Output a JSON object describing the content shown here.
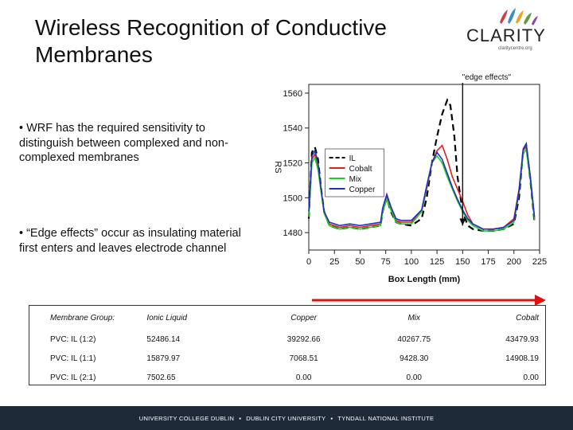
{
  "slide": {
    "title_line1": "Wireless Recognition of Conductive",
    "title_line2": "Membranes",
    "bullet1": "• WRF has the required sensitivity to distinguish between complexed and non-complexed membranes",
    "bullet2": "• “Edge effects” occur as insulating material first enters and leaves electrode channel"
  },
  "logo": {
    "word": "CLARITY",
    "sub": "claritycentre.org"
  },
  "chart_data": {
    "type": "line",
    "title": "",
    "xlabel": "Box Length (mm)",
    "ylabel": "RS",
    "xlim": [
      0,
      225
    ],
    "ylim": [
      1470,
      1565
    ],
    "xticks": [
      0,
      25,
      50,
      75,
      100,
      125,
      150,
      175,
      200,
      225
    ],
    "yticks": [
      1480,
      1500,
      1520,
      1540,
      1560
    ],
    "annotation": "\"edge effects\"",
    "legend_position": "top-left",
    "series": [
      {
        "name": "IL",
        "color": "#000000",
        "dash": "8,5",
        "x": [
          0,
          3,
          6,
          9,
          12,
          15,
          20,
          30,
          40,
          50,
          60,
          70,
          72,
          76,
          80,
          85,
          90,
          100,
          110,
          115,
          120,
          125,
          130,
          135,
          138,
          142,
          145,
          150,
          155,
          160,
          170,
          180,
          190,
          200,
          205,
          209,
          212,
          216,
          220
        ],
        "y": [
          1488,
          1526,
          1529,
          1522,
          1505,
          1492,
          1484,
          1482,
          1483,
          1482,
          1483,
          1484,
          1492,
          1500,
          1492,
          1486,
          1485,
          1484,
          1488,
          1500,
          1520,
          1535,
          1548,
          1556,
          1553,
          1535,
          1512,
          1492,
          1484,
          1482,
          1481,
          1481,
          1482,
          1485,
          1500,
          1527,
          1530,
          1510,
          1486
        ]
      },
      {
        "name": "Cobalt",
        "color": "#e02020",
        "x": [
          0,
          3,
          6,
          9,
          12,
          15,
          20,
          30,
          40,
          50,
          60,
          70,
          72,
          76,
          80,
          85,
          90,
          100,
          110,
          115,
          120,
          125,
          130,
          135,
          140,
          145,
          150,
          155,
          160,
          170,
          180,
          190,
          200,
          205,
          209,
          212,
          216,
          220
        ],
        "y": [
          1490,
          1522,
          1525,
          1518,
          1504,
          1492,
          1485,
          1483,
          1484,
          1483,
          1484,
          1485,
          1493,
          1501,
          1494,
          1487,
          1486,
          1486,
          1492,
          1505,
          1520,
          1527,
          1530,
          1522,
          1512,
          1505,
          1498,
          1490,
          1485,
          1482,
          1482,
          1483,
          1488,
          1505,
          1527,
          1530,
          1512,
          1488
        ]
      },
      {
        "name": "Mix",
        "color": "#22cc22",
        "x": [
          0,
          3,
          6,
          9,
          12,
          15,
          20,
          30,
          40,
          50,
          60,
          70,
          72,
          76,
          80,
          85,
          90,
          100,
          110,
          115,
          120,
          125,
          130,
          135,
          140,
          145,
          150,
          155,
          160,
          170,
          180,
          190,
          200,
          205,
          209,
          212,
          216,
          220
        ],
        "y": [
          1489,
          1520,
          1523,
          1516,
          1503,
          1491,
          1484,
          1482,
          1483,
          1482,
          1483,
          1484,
          1492,
          1499,
          1493,
          1486,
          1485,
          1485,
          1492,
          1506,
          1520,
          1524,
          1520,
          1512,
          1505,
          1498,
          1492,
          1487,
          1484,
          1481,
          1481,
          1482,
          1486,
          1503,
          1525,
          1528,
          1510,
          1487
        ]
      },
      {
        "name": "Copper",
        "color": "#2030c0",
        "x": [
          0,
          3,
          6,
          9,
          12,
          15,
          20,
          30,
          40,
          50,
          60,
          70,
          72,
          76,
          80,
          85,
          90,
          100,
          110,
          115,
          120,
          125,
          130,
          135,
          140,
          145,
          150,
          155,
          160,
          170,
          180,
          190,
          200,
          205,
          209,
          212,
          216,
          220
        ],
        "y": [
          1492,
          1524,
          1527,
          1520,
          1505,
          1492,
          1486,
          1484,
          1485,
          1484,
          1485,
          1486,
          1494,
          1502,
          1495,
          1488,
          1487,
          1487,
          1493,
          1507,
          1520,
          1526,
          1522,
          1514,
          1506,
          1499,
          1493,
          1488,
          1485,
          1482,
          1482,
          1483,
          1487,
          1504,
          1528,
          1531,
          1512,
          1489
        ]
      }
    ]
  },
  "table": {
    "header": [
      "Membrane Group:",
      "Ionic Liquid",
      "Copper",
      "Mix",
      "Cobalt"
    ],
    "rows": [
      [
        "PVC: IL (1:2)",
        "52486.14",
        "39292.66",
        "40267.75",
        "43479.93"
      ],
      [
        "PVC: IL (1:1)",
        "15879.97",
        "7068.51",
        "9428.30",
        "14908.19"
      ],
      [
        "PVC: IL (2:1)",
        "7502.65",
        "0.00",
        "0.00",
        "0.00"
      ]
    ]
  },
  "footer": {
    "item1": "UNIVERSITY COLLEGE DUBLIN",
    "item2": "DUBLIN CITY UNIVERSITY",
    "item3": "TYNDALL NATIONAL INSTITUTE",
    "separator": "▪"
  },
  "colors": {
    "footer_bg": "#1e2a38",
    "arrow_red": "#dd1111"
  }
}
